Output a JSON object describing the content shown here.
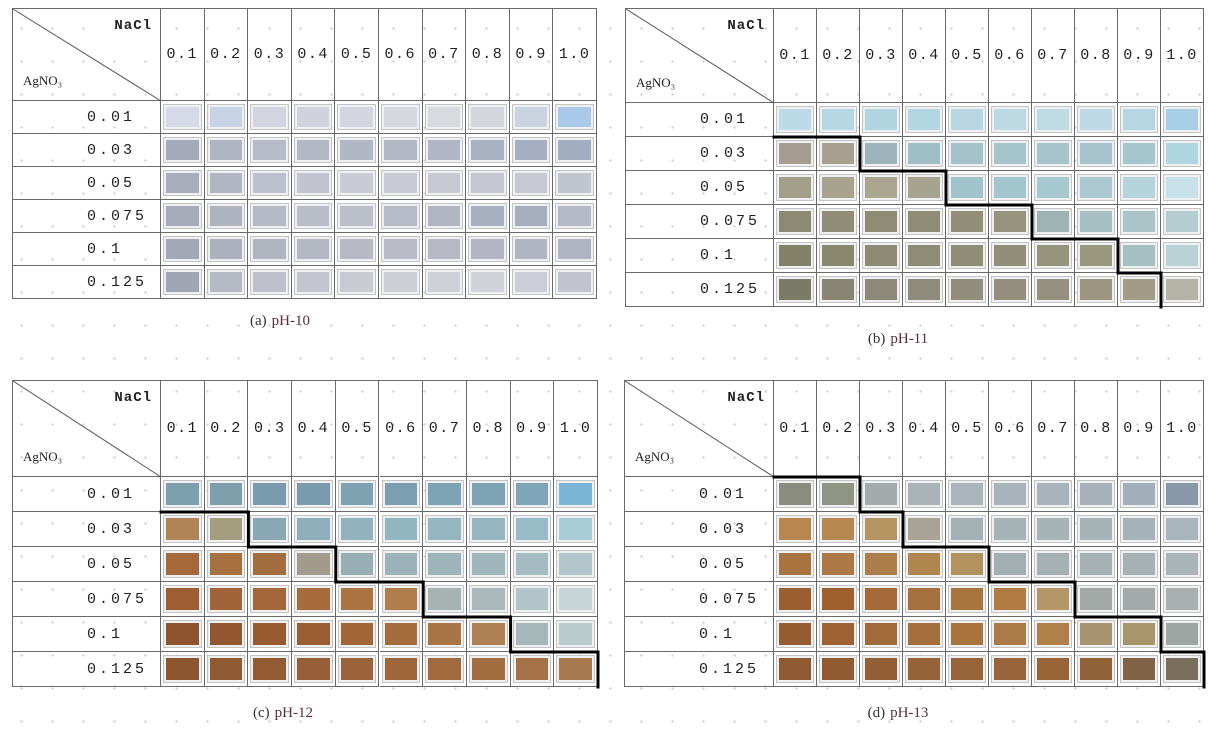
{
  "figure": {
    "boundary_line_color": "#000000",
    "caption_label_color": "#5b2e34",
    "panels": [
      {
        "id": "a",
        "caption_letter": "(a)",
        "caption_label": "pH-10",
        "col_header": "NaCl",
        "row_header": "AgNO₃",
        "columns": [
          "0.1",
          "0.2",
          "0.3",
          "0.4",
          "0.5",
          "0.6",
          "0.7",
          "0.8",
          "0.9",
          "1.0"
        ],
        "rows": [
          "0.01",
          "0.03",
          "0.05",
          "0.075",
          "0.1",
          "0.125"
        ],
        "boundary": null,
        "cell_colors": [
          [
            "#d5dae6",
            "#c8d3e6",
            "#d2d5df",
            "#d0d3dd",
            "#d3d6df",
            "#d6d8e0",
            "#d9dae0",
            "#d4d6de",
            "#ccd3e0",
            "#a9c8ea"
          ],
          [
            "#a4aab9",
            "#afb4c2",
            "#b6bbc7",
            "#b3b8c5",
            "#b1b7c4",
            "#b3b8c5",
            "#b0b6c5",
            "#a9b2c3",
            "#a6afc2",
            "#a2adc0"
          ],
          [
            "#a8adba",
            "#b1b6c2",
            "#bcc1cd",
            "#c2c5cf",
            "#c9ccd4",
            "#c8cbd3",
            "#c7cad2",
            "#c4c7d0",
            "#c6c9d2",
            "#c1c5ce"
          ],
          [
            "#a6abb9",
            "#aeb3c0",
            "#b6bac6",
            "#babec9",
            "#bbbfca",
            "#b7bbc7",
            "#b1b6c4",
            "#a7afc0",
            "#a5adbf",
            "#b3b9c6"
          ],
          [
            "#a3a8b5",
            "#adb1bd",
            "#b0b4bf",
            "#b4b8c3",
            "#b7bac5",
            "#b8bbc6",
            "#b6b9c4",
            "#b3b6c2",
            "#b1b5c1",
            "#b0b4c0"
          ],
          [
            "#a0a5b3",
            "#b6bac5",
            "#bec1cb",
            "#c3c6cf",
            "#c9cbd3",
            "#cccfd6",
            "#cfd1d8",
            "#d1d3da",
            "#cbced6",
            "#c1c4cd"
          ]
        ]
      },
      {
        "id": "b",
        "caption_letter": "(b)",
        "caption_label": "pH-11",
        "col_header": "NaCl",
        "row_header": "AgNO₃",
        "columns": [
          "0.1",
          "0.2",
          "0.3",
          "0.4",
          "0.5",
          "0.6",
          "0.7",
          "0.8",
          "0.9",
          "1.0"
        ],
        "rows": [
          "0.01",
          "0.03",
          "0.05",
          "0.075",
          "0.1",
          "0.125"
        ],
        "boundary": [
          0,
          2,
          4,
          6,
          8,
          9
        ],
        "cell_colors": [
          [
            "#bcdbe6",
            "#b6d7e3",
            "#b3d4e1",
            "#b4d5e2",
            "#b8d7e3",
            "#bcd9e4",
            "#bfdbe5",
            "#bddae6",
            "#b6d6e4",
            "#a7cfe6"
          ],
          [
            "#a69c8f",
            "#a8a08f",
            "#9cb4ba",
            "#a0bec6",
            "#a3c2ca",
            "#a5c4cc",
            "#a6c4cc",
            "#a4c3cc",
            "#a6c6cf",
            "#b0d6e2"
          ],
          [
            "#a39e88",
            "#a8a38d",
            "#a9a58f",
            "#a6a48e",
            "#a0c3cc",
            "#a3c6ce",
            "#a6c9d1",
            "#a9c8d0",
            "#b5d4dc",
            "#c6e1ea"
          ],
          [
            "#8c8a72",
            "#8f8d75",
            "#8e8c74",
            "#8f8d76",
            "#918f78",
            "#96947d",
            "#9db3b4",
            "#a5bfc2",
            "#aac4c8",
            "#b3cdd1"
          ],
          [
            "#838167",
            "#89876e",
            "#8c8a72",
            "#8e8c74",
            "#8f8d75",
            "#918f77",
            "#959379",
            "#99977e",
            "#a6c0c2",
            "#b9d2d6"
          ],
          [
            "#7b7a66",
            "#888573",
            "#8c8978",
            "#8f8c7b",
            "#918e7c",
            "#938f7c",
            "#96917e",
            "#9b9582",
            "#a19b88",
            "#b6b3a7"
          ]
        ]
      },
      {
        "id": "c",
        "caption_letter": "(c)",
        "caption_label": "pH-12",
        "col_header": "NaCl",
        "row_header": "AgNO₃",
        "columns": [
          "0.1",
          "0.2",
          "0.3",
          "0.4",
          "0.5",
          "0.6",
          "0.7",
          "0.8",
          "0.9",
          "1.0"
        ],
        "rows": [
          "0.01",
          "0.03",
          "0.05",
          "0.075",
          "0.1",
          "0.125"
        ],
        "boundary": [
          0,
          2,
          4,
          6,
          8,
          10
        ],
        "cell_colors": [
          [
            "#7d9fae",
            "#7f9fac",
            "#7a9bad",
            "#7a9bad",
            "#7ea2b2",
            "#7b9fb1",
            "#7ea3b4",
            "#7ea3b4",
            "#7fa6b8",
            "#7ab4d4"
          ],
          [
            "#b08456",
            "#a59d7f",
            "#8aa8b4",
            "#8eafbb",
            "#91b2be",
            "#93b5c0",
            "#95b6c1",
            "#96b7c2",
            "#98bbc7",
            "#a8cdd9"
          ],
          [
            "#a5683a",
            "#a9703f",
            "#a26d3f",
            "#a29a8b",
            "#98aeb5",
            "#9bb2b9",
            "#9db4bb",
            "#9fb6bd",
            "#a4bbc1",
            "#b1c5cb"
          ],
          [
            "#9c5e32",
            "#a1643a",
            "#a4663b",
            "#a86b3e",
            "#ac7443",
            "#b07e4c",
            "#a7b2b3",
            "#abb8bb",
            "#b1c4c8",
            "#c7d5d8"
          ],
          [
            "#8e5430",
            "#93572f",
            "#975a31",
            "#9b5e34",
            "#a16538",
            "#a56c3e",
            "#aa7546",
            "#ae8054",
            "#a6b7b9",
            "#bacbcd"
          ],
          [
            "#8b5630",
            "#905a33",
            "#925b34",
            "#965f37",
            "#9a6339",
            "#9d663b",
            "#a06a3e",
            "#a36d42",
            "#a67247",
            "#a8784f"
          ]
        ]
      },
      {
        "id": "d",
        "caption_letter": "(d)",
        "caption_label": "pH-13",
        "col_header": "NaCl",
        "row_header": "AgNO₃",
        "columns": [
          "0.1",
          "0.2",
          "0.3",
          "0.4",
          "0.5",
          "0.6",
          "0.7",
          "0.8",
          "0.9",
          "1.0"
        ],
        "rows": [
          "0.01",
          "0.03",
          "0.05",
          "0.075",
          "0.1",
          "0.125"
        ],
        "boundary": [
          2,
          3,
          5,
          7,
          9,
          10
        ],
        "cell_colors": [
          [
            "#8a8d7d",
            "#909483",
            "#a3acab",
            "#a9b3b8",
            "#aab4bb",
            "#a8b3ba",
            "#a8b3bb",
            "#a6b1ba",
            "#a2aeb9",
            "#8898a8"
          ],
          [
            "#b7874f",
            "#b78851",
            "#b69461",
            "#a9a395",
            "#a3b0b4",
            "#a5b2b6",
            "#a6b3b7",
            "#a5b2b6",
            "#a5b2b7",
            "#a9b7bc"
          ],
          [
            "#a8733f",
            "#ac7845",
            "#ae7e4a",
            "#b0864f",
            "#b29360",
            "#a3aeb0",
            "#a5b0b2",
            "#a6b1b3",
            "#a7b1b4",
            "#aab4b7"
          ],
          [
            "#9a5f31",
            "#9f6030",
            "#a46a39",
            "#a7703f",
            "#a9753f",
            "#b07c43",
            "#b59668",
            "#a3a9a7",
            "#a4aaa9",
            "#aab0af"
          ],
          [
            "#945c30",
            "#9c6233",
            "#a06a3a",
            "#a46e3d",
            "#a8733f",
            "#ab7a46",
            "#b0804b",
            "#a7936f",
            "#a8956c",
            "#9ea6a4"
          ],
          [
            "#8d5a31",
            "#905b32",
            "#935f35",
            "#966237",
            "#976338",
            "#996439",
            "#996338",
            "#8f6238",
            "#806347",
            "#7a6e5c"
          ]
        ]
      }
    ]
  }
}
